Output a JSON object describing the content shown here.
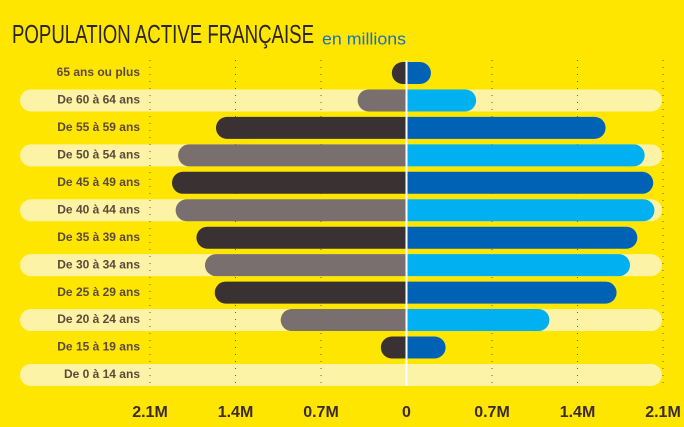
{
  "chart_data": {
    "type": "pyramid",
    "title": "POPULATION ACTIVE FRANÇAISE",
    "subtitle": "en millions",
    "categories": [
      "65 ans ou plus",
      "De 60 à 64 ans",
      "De 55 à 59 ans",
      "De 50 à 54 ans",
      "De 45 à 49 ans",
      "De 40 à 44 ans",
      "De 35 à 39 ans",
      "De 30 à 34 ans",
      "De 25 à 29 ans",
      "De 20 à 24 ans",
      "De 15 à 19 ans",
      "De 0 à 14 ans"
    ],
    "series": [
      {
        "side": "left",
        "colors": [
          "#3a3132",
          "#7a6f6f",
          "#3a3132",
          "#7a6f6f",
          "#3a3132",
          "#7a6f6f",
          "#3a3132",
          "#7a6f6f",
          "#3a3132",
          "#7a6f6f",
          "#3a3132",
          "#7a6f6f"
        ],
        "values": [
          0.12,
          0.4,
          1.56,
          1.87,
          1.92,
          1.89,
          1.72,
          1.65,
          1.57,
          1.03,
          0.21,
          0
        ]
      },
      {
        "side": "right",
        "colors": [
          "#0062b4",
          "#00b0f0",
          "#0062b4",
          "#00b0f0",
          "#0062b4",
          "#00b0f0",
          "#0062b4",
          "#00b0f0",
          "#0062b4",
          "#00b0f0",
          "#0062b4",
          "#00b0f0"
        ],
        "values": [
          0.2,
          0.57,
          1.63,
          1.95,
          2.02,
          2.03,
          1.89,
          1.83,
          1.72,
          1.17,
          0.32,
          0
        ]
      }
    ],
    "xlim": [
      -2.1,
      2.1
    ],
    "xticks": [
      {
        "value": -2.1,
        "label": "2.1M"
      },
      {
        "value": -1.4,
        "label": "1.4M"
      },
      {
        "value": -0.7,
        "label": "0.7M"
      },
      0,
      {
        "value": 0.7,
        "label": "0.7M"
      },
      {
        "value": 1.4,
        "label": "1.4M"
      },
      {
        "value": 2.1,
        "label": "2.1M"
      }
    ],
    "grid": true
  }
}
